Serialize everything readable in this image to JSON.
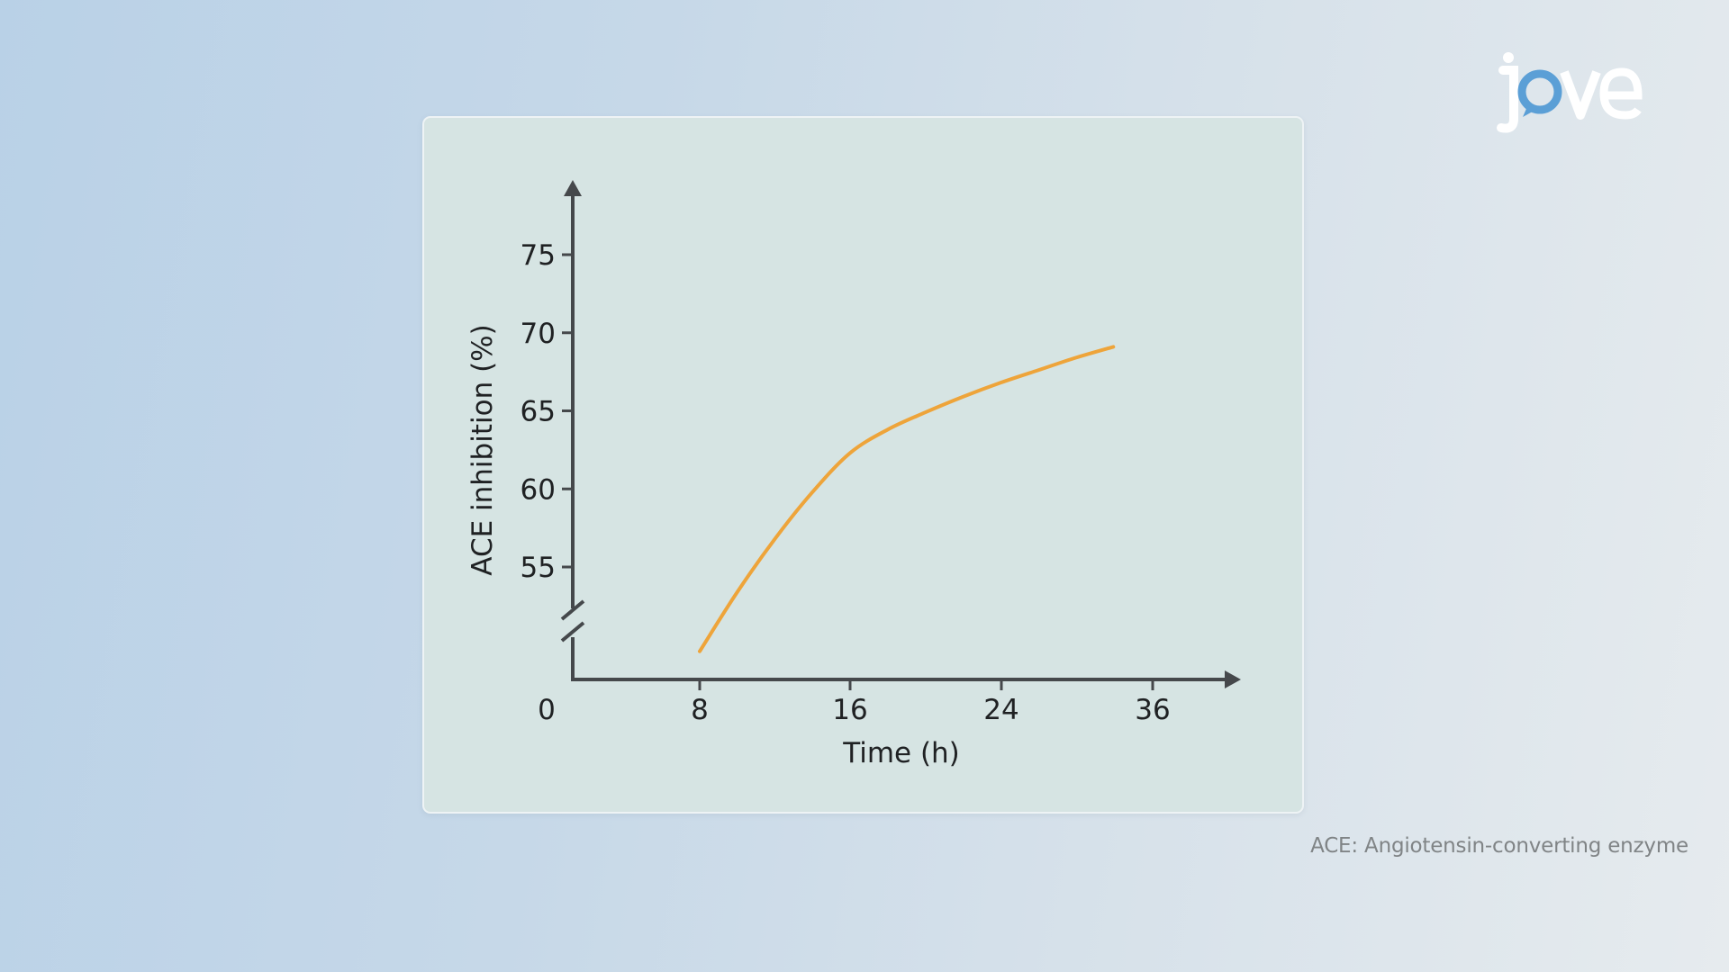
{
  "brand": {
    "logo_text": "jove",
    "colors": {
      "logo": "#ffffff",
      "logo_accent": "#5b9fd6"
    }
  },
  "footnote": "ACE: Angiotensin-converting enzyme",
  "colors": {
    "axis": "#45484b",
    "line": "#eea43a",
    "panel": "#d6e4e3"
  },
  "chart_data": {
    "type": "line",
    "title": "",
    "xlabel": "Time (h)",
    "ylabel": "ACE inhibition (%)",
    "x_ticks": [
      "0",
      "8",
      "16",
      "24",
      "36"
    ],
    "y_ticks": [
      "55",
      "60",
      "65",
      "70",
      "75"
    ],
    "y_axis_break": true,
    "grid": false,
    "series": [
      {
        "x": [
          8,
          10,
          12,
          14,
          16,
          18,
          20,
          22,
          24,
          26,
          28,
          30
        ],
        "y": [
          49.6,
          53.4,
          56.8,
          59.8,
          62.3,
          63.8,
          64.9,
          65.9,
          66.8,
          67.6,
          68.4,
          69.1
        ]
      }
    ]
  }
}
